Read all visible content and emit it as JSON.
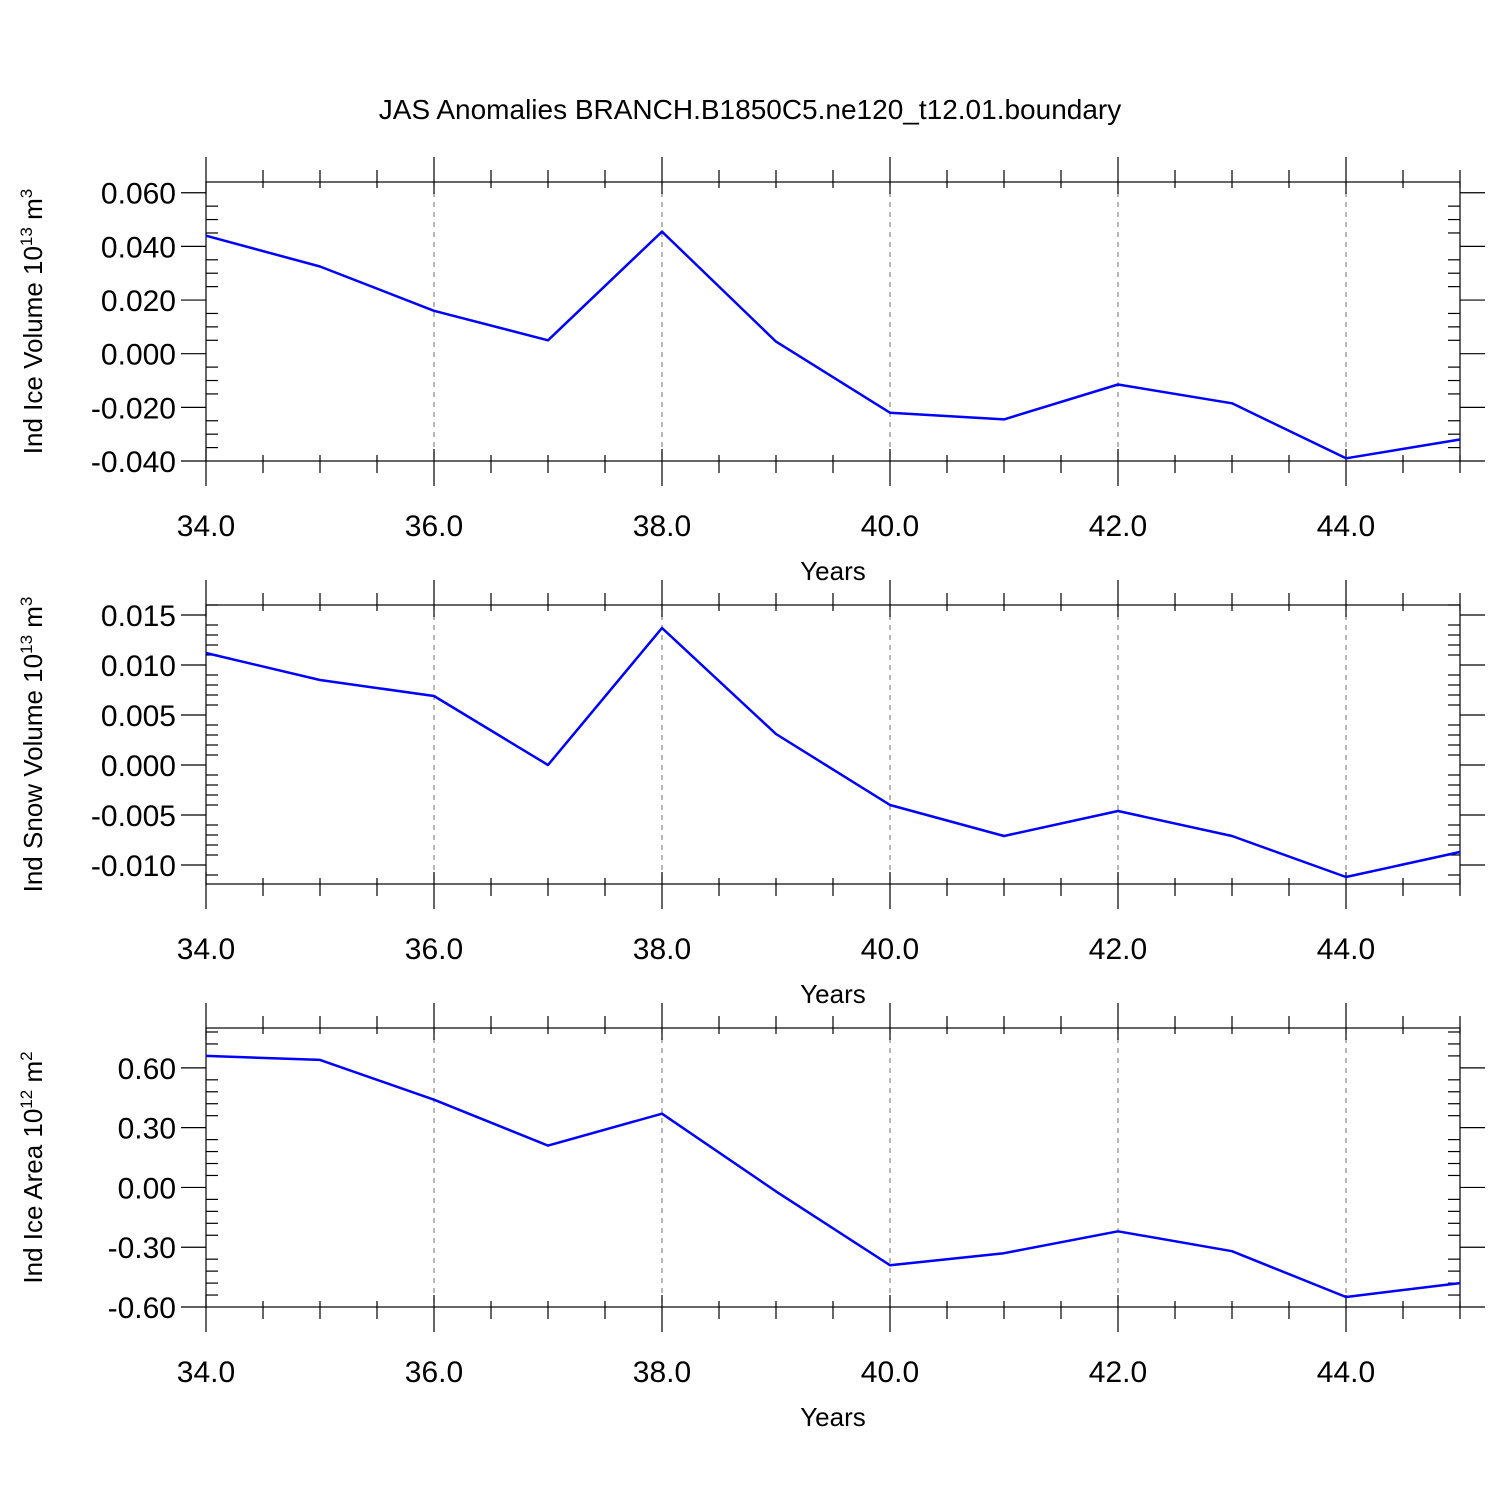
{
  "title": "JAS Anomalies BRANCH.B1850C5.ne120_t12.01.boundary",
  "colors": {
    "line": "#0000ff",
    "grid": "#888888",
    "axis": "#000000"
  },
  "chart_data": [
    {
      "type": "line",
      "xlabel": "Years",
      "ylabel_prefix": "Ind Ice Volume 10",
      "ylabel_exp": "13",
      "ylabel_unit": " m",
      "ylabel_unit_exp": "3",
      "xlim": [
        34,
        45
      ],
      "ylim": [
        -0.04,
        0.064
      ],
      "x_ticks": [
        34,
        36,
        38,
        40,
        42,
        44
      ],
      "x_tick_labels": [
        "34.0",
        "36.0",
        "38.0",
        "40.0",
        "42.0",
        "44.0"
      ],
      "y_ticks": [
        -0.04,
        -0.02,
        0.0,
        0.02,
        0.04,
        0.06
      ],
      "y_tick_labels": [
        "-0.040",
        "-0.020",
        "0.000",
        "0.020",
        "0.040",
        "0.060"
      ],
      "y_minor_step": 0.005,
      "x": [
        34,
        35,
        36,
        37,
        38,
        39,
        40,
        41,
        42,
        43,
        44,
        45
      ],
      "values": [
        0.044,
        0.0325,
        0.016,
        0.005,
        0.0455,
        0.0045,
        -0.022,
        -0.0245,
        -0.0115,
        -0.0185,
        -0.039,
        -0.032
      ]
    },
    {
      "type": "line",
      "xlabel": "Years",
      "ylabel_prefix": "Ind Snow Volume 10",
      "ylabel_exp": "13",
      "ylabel_unit": " m",
      "ylabel_unit_exp": "3",
      "xlim": [
        34,
        45
      ],
      "ylim": [
        -0.0119,
        0.016
      ],
      "x_ticks": [
        34,
        36,
        38,
        40,
        42,
        44
      ],
      "x_tick_labels": [
        "34.0",
        "36.0",
        "38.0",
        "40.0",
        "42.0",
        "44.0"
      ],
      "y_ticks": [
        -0.01,
        -0.005,
        0.0,
        0.005,
        0.01,
        0.015
      ],
      "y_tick_labels": [
        "-0.010",
        "-0.005",
        "0.000",
        "0.005",
        "0.010",
        "0.015"
      ],
      "y_minor_step": 0.001,
      "x": [
        34,
        35,
        36,
        37,
        38,
        39,
        40,
        41,
        42,
        43,
        44,
        45
      ],
      "values": [
        0.0112,
        0.0085,
        0.0069,
        0.0,
        0.0137,
        0.0031,
        -0.004,
        -0.0071,
        -0.0046,
        -0.0071,
        -0.0112,
        -0.0087
      ]
    },
    {
      "type": "line",
      "xlabel": "Years",
      "ylabel_prefix": "Ind Ice Area 10",
      "ylabel_exp": "12",
      "ylabel_unit": " m",
      "ylabel_unit_exp": "2",
      "xlim": [
        34,
        45
      ],
      "ylim": [
        -0.6,
        0.8
      ],
      "x_ticks": [
        34,
        36,
        38,
        40,
        42,
        44
      ],
      "x_tick_labels": [
        "34.0",
        "36.0",
        "38.0",
        "40.0",
        "42.0",
        "44.0"
      ],
      "y_ticks": [
        -0.6,
        -0.3,
        0.0,
        0.3,
        0.6
      ],
      "y_tick_labels": [
        "-0.60",
        "-0.30",
        "0.00",
        "0.30",
        "0.60"
      ],
      "y_minor_step": 0.06,
      "x": [
        34,
        35,
        36,
        37,
        38,
        39,
        40,
        41,
        42,
        43,
        44,
        45
      ],
      "values": [
        0.66,
        0.64,
        0.44,
        0.21,
        0.37,
        -0.02,
        -0.39,
        -0.33,
        -0.22,
        -0.32,
        -0.55,
        -0.48
      ]
    }
  ]
}
